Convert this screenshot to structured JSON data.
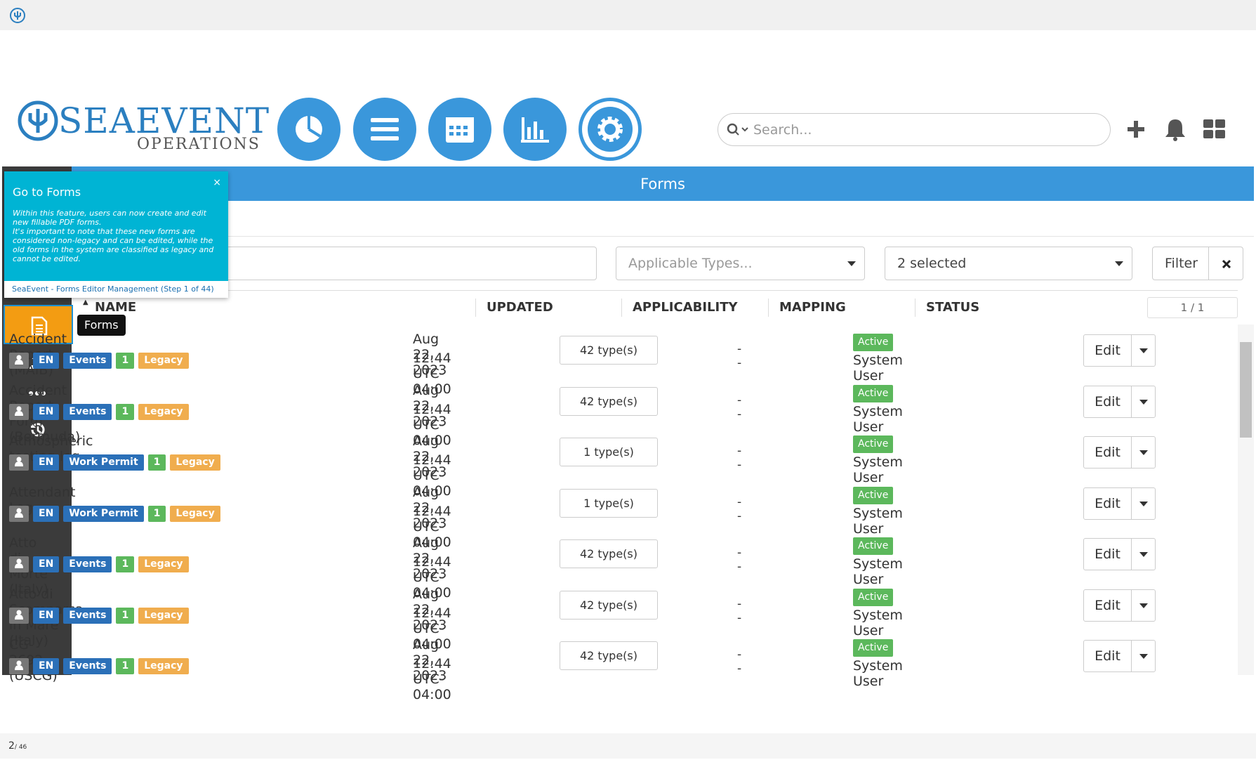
{
  "header": {
    "brand": "SEAEVENT",
    "brand_sub": "OPERATIONS",
    "search_placeholder": "Search..."
  },
  "banner": {
    "title": "Forms"
  },
  "filters": {
    "types_placeholder": "Applicable Types...",
    "status_selected": "2 selected",
    "filter_button": "Filter"
  },
  "sidebar": {
    "tooltip": "Forms"
  },
  "tour": {
    "title": "Go to Forms",
    "body": [
      "Within this feature, users can now create and edit new fillable PDF forms.",
      "It's important to note that these new forms are considered non-legacy and can be edited, while the old forms in the system are classified as legacy and cannot be edited."
    ],
    "footer": "SeaEvent - Forms Editor Management (Step 1 of 44)"
  },
  "table": {
    "columns": [
      "NAME",
      "UPDATED",
      "APPLICABILITY",
      "MAPPING",
      "STATUS"
    ],
    "pager": "1 / 1",
    "rows": [
      {
        "name": "Accident Report (MAIB)",
        "tags": [
          "EN",
          "Events",
          "1",
          "Legacy"
        ],
        "updated": [
          "Aug 22, 2023",
          "12:44 UTC-04:00"
        ],
        "applicability": "42 type(s)",
        "mapping": "--",
        "status": "Active",
        "user": "System User",
        "action": "Edit"
      },
      {
        "name": "Accident Report Form (Bermuda)",
        "tags": [
          "EN",
          "Events",
          "1",
          "Legacy"
        ],
        "updated": [
          "Aug 22, 2023",
          "12:44 UTC-04:00"
        ],
        "applicability": "42 type(s)",
        "mapping": "--",
        "status": "Active",
        "user": "System User",
        "action": "Edit"
      },
      {
        "name": "Atmospheric testing log",
        "tags": [
          "EN",
          "Work Permit",
          "1",
          "Legacy"
        ],
        "updated": [
          "Aug 22, 2023",
          "12:44 UTC-04:00"
        ],
        "applicability": "1 type(s)",
        "mapping": "--",
        "status": "Active",
        "user": "System User",
        "action": "Edit"
      },
      {
        "name": "Attendant Log",
        "tags": [
          "EN",
          "Work Permit",
          "1",
          "Legacy"
        ],
        "updated": [
          "Aug 22, 2023",
          "12:44 UTC-04:00"
        ],
        "applicability": "1 type(s)",
        "mapping": "--",
        "status": "Active",
        "user": "System User",
        "action": "Edit"
      },
      {
        "name": "Atto di Morte (Italy)",
        "tags": [
          "EN",
          "Events",
          "1",
          "Legacy"
        ],
        "updated": [
          "Aug 22, 2023",
          "12:44 UTC-04:00"
        ],
        "applicability": "42 type(s)",
        "mapping": "--",
        "status": "Active",
        "user": "System User",
        "action": "Edit"
      },
      {
        "name": "Atto di Scomparsa in Mare (Italy)",
        "tags": [
          "EN",
          "Events",
          "1",
          "Legacy"
        ],
        "updated": [
          "Aug 22, 2023",
          "12:44 UTC-04:00"
        ],
        "applicability": "42 type(s)",
        "mapping": "--",
        "status": "Active",
        "user": "System User",
        "action": "Edit"
      },
      {
        "name": "CG-2692 (USCG)",
        "tags": [
          "EN",
          "Events",
          "1",
          "Legacy"
        ],
        "updated": [
          "Aug 22, 2023",
          "12:44 UTC-04:00"
        ],
        "applicability": "42 type(s)",
        "mapping": "--",
        "status": "Active",
        "user": "System User",
        "action": "Edit"
      }
    ]
  },
  "footer": {
    "page": "2",
    "total": "/ 46"
  }
}
